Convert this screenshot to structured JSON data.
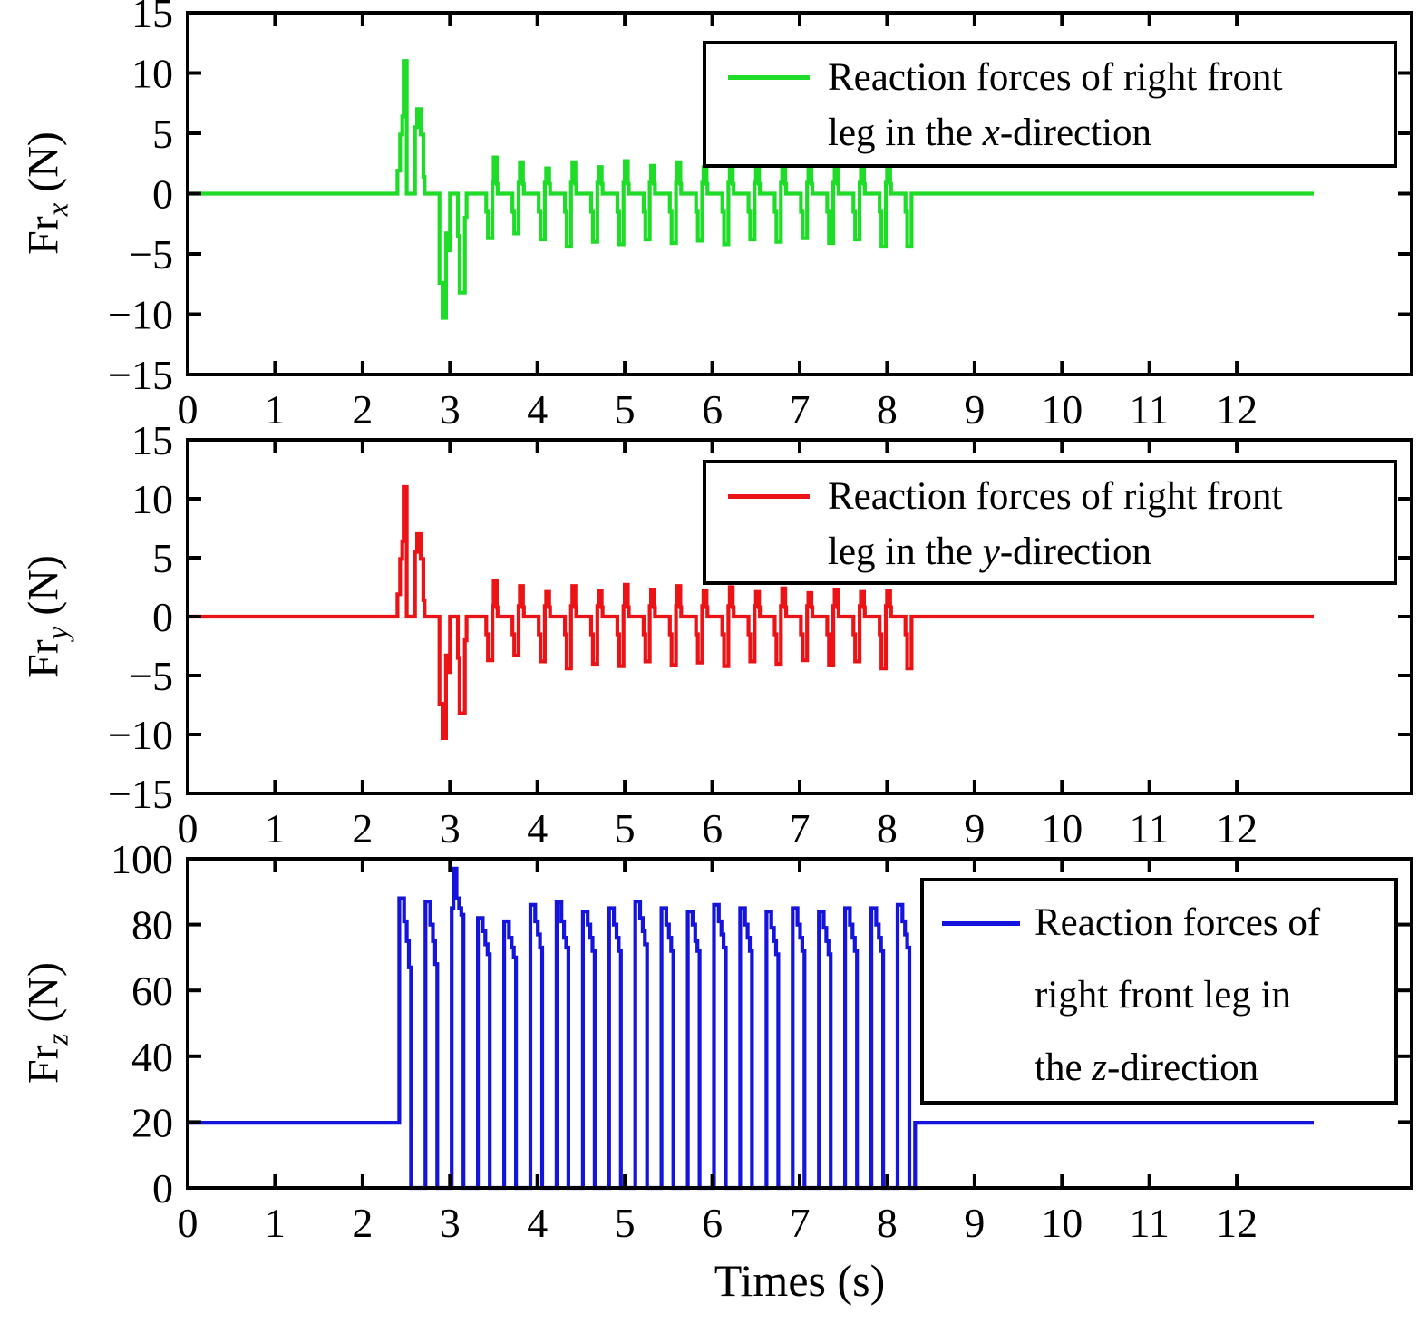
{
  "figure": {
    "background": "#ffffff",
    "xlabel": "Times (s)",
    "axis_color": "#000000"
  },
  "chart_data": [
    {
      "type": "line",
      "title": "",
      "xlabel": "",
      "ylabel": "Fr_x (N)",
      "ylabel_parts": {
        "pre": "Fr",
        "sub": "x",
        "post": " (N)"
      },
      "color": "#1edc28",
      "xlim": [
        0,
        14
      ],
      "ylim": [
        -15,
        15
      ],
      "grid": false,
      "xticks": {
        "values": [
          0,
          1,
          2,
          3,
          4,
          5,
          6,
          7,
          8,
          9,
          10,
          11,
          12
        ],
        "labels": [
          "0",
          "1",
          "2",
          "3",
          "4",
          "5",
          "6",
          "7",
          "8",
          "9",
          "10",
          "11",
          "12"
        ]
      },
      "yticks": {
        "values": [
          -15,
          -10,
          -5,
          0,
          5,
          10,
          15
        ],
        "labels": [
          "−15",
          "−10",
          "−5",
          "0",
          "5",
          "10",
          "15"
        ]
      },
      "legend": {
        "position": "top-right",
        "lines": [
          [
            {
              "t": "Reaction forces of right front"
            }
          ],
          [
            {
              "t": "leg in the "
            },
            {
              "t": "x",
              "i": true
            },
            {
              "t": "-direction"
            }
          ]
        ]
      },
      "waveform": {
        "baseline": 0,
        "end": 12.88,
        "transient": [
          [
            2.4,
            1.9
          ],
          [
            2.43,
            4.9
          ],
          [
            2.455,
            6.4
          ],
          [
            2.47,
            11.0
          ],
          [
            2.505,
            0
          ],
          [
            2.6,
            5.5
          ],
          [
            2.625,
            7.0
          ],
          [
            2.665,
            4.9
          ],
          [
            2.695,
            1.4
          ],
          [
            2.71,
            0
          ],
          [
            2.88,
            -7.4
          ],
          [
            2.915,
            -10.3
          ],
          [
            2.955,
            -3.3
          ],
          [
            2.975,
            -4.7
          ],
          [
            3.0,
            0
          ],
          [
            3.09,
            -3.5
          ],
          [
            3.11,
            -8.2
          ],
          [
            3.17,
            -2.0
          ],
          [
            3.19,
            0
          ]
        ],
        "cycles": {
          "start": 3.32,
          "period": 0.3,
          "count": 16,
          "dt": [
            0.0,
            0.095,
            0.115,
            0.165,
            0.18,
            0.215,
            0.225
          ],
          "vals": [
            0,
            -1.5,
            "D",
            0.9,
            "P",
            0.8,
            0
          ],
          "dip": [
            -3.7,
            -3.3,
            -3.8,
            -4.4,
            -4.0,
            -4.2,
            -3.8,
            -4.1,
            -3.9,
            -4.2,
            -3.8,
            -4.0,
            -3.7,
            -4.1,
            -3.8,
            -4.4
          ],
          "peak": [
            3.0,
            2.6,
            2.1,
            2.6,
            2.2,
            2.7,
            2.3,
            2.6,
            2.2,
            2.5,
            2.1,
            2.4,
            2.0,
            2.3,
            2.1,
            2.2
          ]
        },
        "tail": [
          [
            8.21,
            -1.5
          ],
          [
            8.23,
            -4.4
          ],
          [
            8.28,
            0
          ]
        ]
      }
    },
    {
      "type": "line",
      "title": "",
      "xlabel": "",
      "ylabel": "Fr_y (N)",
      "ylabel_parts": {
        "pre": "Fr",
        "sub": "y",
        "post": " (N)"
      },
      "color": "#ec1317",
      "xlim": [
        0,
        14
      ],
      "ylim": [
        -15,
        15
      ],
      "grid": false,
      "xticks": {
        "values": [
          0,
          1,
          2,
          3,
          4,
          5,
          6,
          7,
          8,
          9,
          10,
          11,
          12
        ],
        "labels": [
          "0",
          "1",
          "2",
          "3",
          "4",
          "5",
          "6",
          "7",
          "8",
          "9",
          "10",
          "11",
          "12"
        ]
      },
      "yticks": {
        "values": [
          -15,
          -10,
          -5,
          0,
          5,
          10,
          15
        ],
        "labels": [
          "−15",
          "−10",
          "−5",
          "0",
          "5",
          "10",
          "15"
        ]
      },
      "legend": {
        "position": "top-right",
        "lines": [
          [
            {
              "t": "Reaction forces of right front"
            }
          ],
          [
            {
              "t": "leg in the "
            },
            {
              "t": "y",
              "i": true
            },
            {
              "t": "-direction"
            }
          ]
        ]
      },
      "waveform": {
        "baseline": 0,
        "end": 12.88,
        "transient": [
          [
            2.4,
            1.9
          ],
          [
            2.43,
            4.9
          ],
          [
            2.455,
            6.4
          ],
          [
            2.47,
            11.0
          ],
          [
            2.505,
            0
          ],
          [
            2.6,
            5.5
          ],
          [
            2.625,
            7.0
          ],
          [
            2.665,
            4.9
          ],
          [
            2.695,
            1.4
          ],
          [
            2.71,
            0
          ],
          [
            2.88,
            -7.4
          ],
          [
            2.915,
            -10.3
          ],
          [
            2.955,
            -3.3
          ],
          [
            2.975,
            -4.7
          ],
          [
            3.0,
            0
          ],
          [
            3.09,
            -3.5
          ],
          [
            3.11,
            -8.2
          ],
          [
            3.17,
            -2.0
          ],
          [
            3.19,
            0
          ]
        ],
        "cycles": {
          "start": 3.32,
          "period": 0.3,
          "count": 16,
          "dt": [
            0.0,
            0.095,
            0.115,
            0.165,
            0.18,
            0.215,
            0.225
          ],
          "vals": [
            0,
            -1.5,
            "D",
            0.9,
            "P",
            0.8,
            0
          ],
          "dip": [
            -3.7,
            -3.3,
            -3.8,
            -4.4,
            -4.0,
            -4.2,
            -3.8,
            -4.1,
            -3.9,
            -4.2,
            -3.8,
            -4.0,
            -3.7,
            -4.1,
            -3.8,
            -4.4
          ],
          "peak": [
            3.0,
            2.6,
            2.1,
            2.6,
            2.2,
            2.7,
            2.3,
            2.6,
            2.2,
            2.5,
            2.1,
            2.4,
            2.0,
            2.3,
            2.1,
            2.2
          ]
        },
        "tail": [
          [
            8.21,
            -1.5
          ],
          [
            8.23,
            -4.4
          ],
          [
            8.28,
            0
          ]
        ]
      }
    },
    {
      "type": "line",
      "title": "",
      "xlabel": "Times (s)",
      "ylabel": "Fr_z (N)",
      "ylabel_parts": {
        "pre": "Fr",
        "sub": "z",
        "post": " (N)"
      },
      "color": "#1414dc",
      "xlim": [
        0,
        14
      ],
      "ylim": [
        0,
        100
      ],
      "grid": false,
      "xticks": {
        "values": [
          0,
          1,
          2,
          3,
          4,
          5,
          6,
          7,
          8,
          9,
          10,
          11,
          12
        ],
        "labels": [
          "0",
          "1",
          "2",
          "3",
          "4",
          "5",
          "6",
          "7",
          "8",
          "9",
          "10",
          "11",
          "12"
        ]
      },
      "yticks": {
        "values": [
          0,
          20,
          40,
          60,
          80,
          100
        ],
        "labels": [
          "0",
          "20",
          "40",
          "60",
          "80",
          "100"
        ]
      },
      "legend": {
        "position": "top-right",
        "lines": [
          [
            {
              "t": "Reaction forces of"
            }
          ],
          [
            {
              "t": "right front leg in"
            }
          ],
          [
            {
              "t": "the "
            },
            {
              "t": "z",
              "i": true
            },
            {
              "t": "-direction"
            }
          ]
        ]
      },
      "waveform": {
        "baseline": 19.8,
        "end": 12.88,
        "pulses": {
          "start": 2.42,
          "period": 0.3,
          "count": 20,
          "dt": [
            0.0,
            0.02,
            0.055,
            0.085,
            0.11,
            0.135
          ],
          "rows": [
            "r0",
            "r1",
            "s1",
            "s2",
            "s3"
          ],
          "r0": [
            88,
            87,
            85,
            82,
            81,
            86,
            87,
            84,
            85,
            87,
            85,
            84,
            86,
            85,
            84,
            85,
            84,
            85,
            85,
            86
          ],
          "r1": [
            88,
            87,
            97,
            82,
            81,
            86,
            87,
            84,
            85,
            87,
            85,
            84,
            86,
            85,
            84,
            85,
            84,
            85,
            85,
            86
          ],
          "s1": [
            81,
            80,
            88,
            78,
            76,
            81,
            81,
            80,
            80,
            82,
            80,
            80,
            81,
            80,
            79,
            80,
            79,
            80,
            80,
            81
          ],
          "s2": [
            75,
            75,
            85,
            74,
            73,
            77,
            76,
            76,
            76,
            78,
            76,
            75,
            77,
            76,
            75,
            76,
            75,
            76,
            76,
            77
          ],
          "s3": [
            67,
            68,
            83,
            71,
            70,
            73,
            73,
            72,
            72,
            74,
            72,
            72,
            73,
            72,
            71,
            72,
            71,
            72,
            72,
            73
          ]
        },
        "tail": [
          [
            8.32,
            19.8
          ]
        ]
      }
    }
  ]
}
